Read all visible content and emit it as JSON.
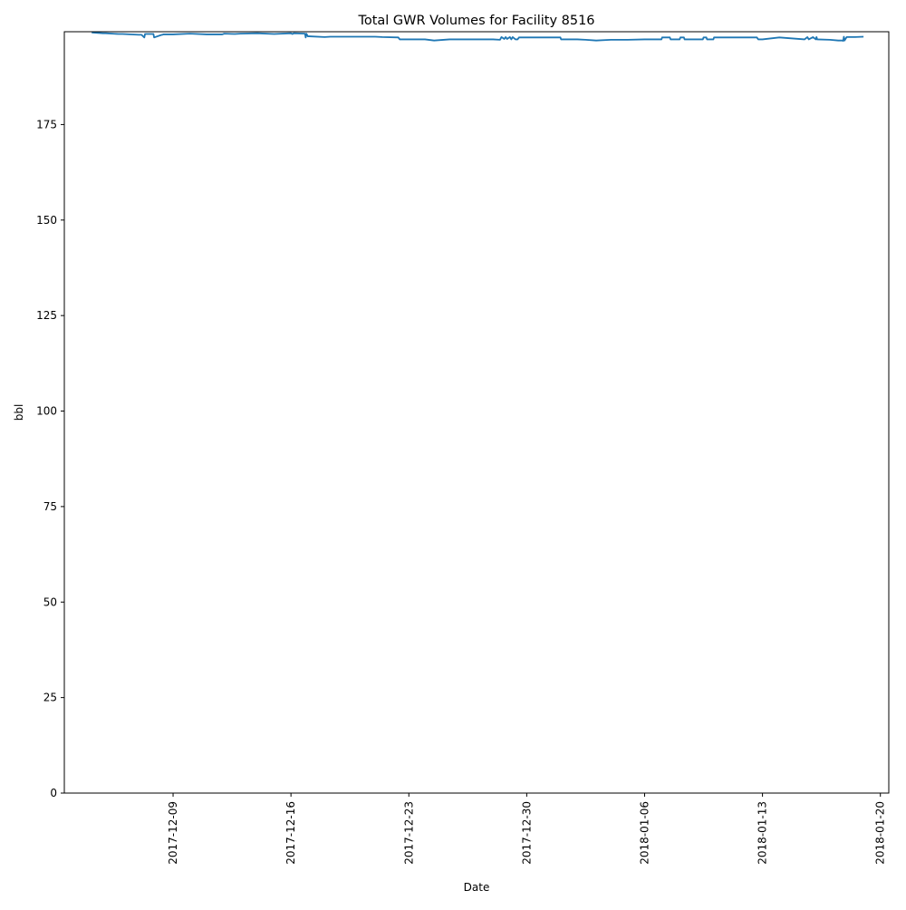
{
  "chart_data": {
    "type": "line",
    "title": "Total GWR Volumes for Facility 8516",
    "xlabel": "Date",
    "ylabel": "bbl",
    "x_type": "date",
    "xlim": [
      "2017-12-02T13:00",
      "2018-01-20T12:00"
    ],
    "ylim": [
      0,
      199.3
    ],
    "x_ticks": [
      "2017-12-09",
      "2017-12-16",
      "2017-12-23",
      "2017-12-30",
      "2018-01-06",
      "2018-01-13",
      "2018-01-20"
    ],
    "y_ticks": [
      0,
      25,
      50,
      75,
      100,
      125,
      150,
      175
    ],
    "grid": false,
    "legend": null,
    "series_color": "#1f77b4",
    "series": [
      {
        "x": [
          "2017-12-04T04:00",
          "2017-12-04T20:00",
          "2017-12-05T00:00",
          "2017-12-05T18:00",
          "2017-12-06T00:00",
          "2017-12-06T23:00",
          "2017-12-07T03:00",
          "2017-12-07T07:00",
          "2017-12-07T08:00",
          "2017-12-07T20:00",
          "2017-12-07T21:00",
          "2017-12-08T08:00",
          "2017-12-08T09:00",
          "2017-12-08T10:00",
          "2017-12-09T00:00",
          "2017-12-10T00:00",
          "2017-12-11T00:00",
          "2017-12-11T22:00",
          "2017-12-12T01:00",
          "2017-12-12T16:00",
          "2017-12-13T00:00",
          "2017-12-14T00:00",
          "2017-12-15T00:00",
          "2017-12-16T00:00",
          "2017-12-16T02:00",
          "2017-12-16T04:00",
          "2017-12-16T20:00",
          "2017-12-16T21:00",
          "2017-12-16T22:00",
          "2017-12-17T00:00",
          "2017-12-17T02:00",
          "2017-12-18T00:00",
          "2017-12-18T08:00",
          "2017-12-19T00:00",
          "2017-12-20T00:00",
          "2017-12-21T00:00",
          "2017-12-21T10:00",
          "2017-12-22T09:00",
          "2017-12-22T11:00",
          "2017-12-23T00:00",
          "2017-12-23T23:00",
          "2017-12-24T12:00",
          "2017-12-25T10:00",
          "2017-12-25T12:00",
          "2017-12-26T00:00",
          "2017-12-27T00:00",
          "2017-12-28T00:00",
          "2017-12-28T10:00",
          "2017-12-28T12:00",
          "2017-12-28T16:00",
          "2017-12-28T18:00",
          "2017-12-28T20:00",
          "2017-12-29T00:00",
          "2017-12-29T02:00",
          "2017-12-29T04:00",
          "2017-12-29T08:00",
          "2017-12-29T11:00",
          "2017-12-29T13:00",
          "2017-12-30T00:00",
          "2017-12-31T00:00",
          "2018-01-01T00:00",
          "2018-01-01T01:00",
          "2018-01-02T00:00",
          "2018-01-02T12:00",
          "2018-01-03T03:00",
          "2018-01-04T00:00",
          "2018-01-05T00:00",
          "2018-01-06T00:00",
          "2018-01-07T00:00",
          "2018-01-07T01:00",
          "2018-01-07T12:00",
          "2018-01-07T13:00",
          "2018-01-08T02:00",
          "2018-01-08T03:00",
          "2018-01-08T08:00",
          "2018-01-08T09:00",
          "2018-01-09T00:00",
          "2018-01-09T11:00",
          "2018-01-09T12:00",
          "2018-01-09T16:00",
          "2018-01-09T17:00",
          "2018-01-10T02:00",
          "2018-01-10T03:00",
          "2018-01-11T00:00",
          "2018-01-12T00:00",
          "2018-01-12T16:00",
          "2018-01-12T18:00",
          "2018-01-13T00:00",
          "2018-01-14T00:00",
          "2018-01-15T12:00",
          "2018-01-15T16:00",
          "2018-01-15T18:00",
          "2018-01-16T00:00",
          "2018-01-16T04:00",
          "2018-01-16T05:00",
          "2018-01-16T06:00",
          "2018-01-17T00:00",
          "2018-01-17T12:00",
          "2018-01-17T18:00",
          "2018-01-17T19:00",
          "2018-01-17T20:00",
          "2018-01-17T21:00",
          "2018-01-18T00:00",
          "2018-01-18T12:00",
          "2018-01-19T00:00"
        ],
        "y": [
          199.1,
          198.9,
          198.9,
          198.7,
          198.7,
          198.5,
          198.5,
          197.8,
          198.7,
          198.7,
          197.8,
          198.5,
          198.5,
          198.6,
          198.6,
          198.8,
          198.6,
          198.6,
          198.8,
          198.7,
          198.8,
          198.9,
          198.7,
          198.9,
          198.7,
          198.9,
          198.8,
          197.8,
          198.8,
          198.1,
          198.1,
          197.9,
          198.0,
          198.0,
          198.0,
          198.0,
          197.9,
          197.8,
          197.3,
          197.3,
          197.3,
          197.0,
          197.3,
          197.3,
          197.3,
          197.3,
          197.3,
          197.2,
          197.9,
          197.4,
          197.9,
          197.4,
          197.9,
          197.3,
          197.9,
          197.3,
          197.3,
          197.8,
          197.8,
          197.8,
          197.8,
          197.3,
          197.3,
          197.2,
          197.0,
          197.2,
          197.2,
          197.3,
          197.3,
          197.8,
          197.8,
          197.3,
          197.3,
          197.8,
          197.8,
          197.3,
          197.3,
          197.3,
          197.8,
          197.8,
          197.3,
          197.3,
          197.8,
          197.8,
          197.8,
          197.8,
          197.3,
          197.3,
          197.8,
          197.3,
          197.9,
          197.3,
          197.9,
          197.3,
          197.9,
          197.3,
          197.2,
          197.0,
          197.0,
          196.9,
          198.0,
          197.0,
          197.9,
          197.9,
          198.0
        ]
      }
    ]
  }
}
